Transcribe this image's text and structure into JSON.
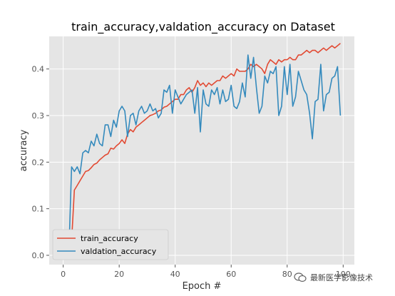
{
  "chart_data": {
    "type": "line",
    "title": "train_accuracy,valdation_accuracy on Dataset",
    "xlabel": "Epoch #",
    "ylabel": "accuracy",
    "xlim": [
      -5,
      104
    ],
    "ylim": [
      -0.02,
      0.47
    ],
    "xticks": [
      0,
      20,
      40,
      60,
      80,
      100
    ],
    "yticks": [
      0.0,
      0.1,
      0.2,
      0.3,
      0.4
    ],
    "xtick_labels": [
      "0",
      "20",
      "40",
      "60",
      "80",
      "100"
    ],
    "ytick_labels": [
      "0.0",
      "0.1",
      "0.2",
      "0.3",
      "0.4"
    ],
    "grid": true,
    "legend_position": "lower-left",
    "series": [
      {
        "name": "train_accuracy",
        "color": "#E24A33",
        "x": [
          3,
          4,
          5,
          6,
          7,
          8,
          9,
          10,
          11,
          12,
          13,
          14,
          15,
          16,
          17,
          18,
          19,
          20,
          21,
          22,
          23,
          24,
          25,
          26,
          27,
          28,
          29,
          30,
          31,
          32,
          33,
          34,
          35,
          36,
          37,
          38,
          39,
          40,
          41,
          42,
          43,
          44,
          45,
          46,
          47,
          48,
          49,
          50,
          51,
          52,
          53,
          54,
          55,
          56,
          57,
          58,
          59,
          60,
          61,
          62,
          63,
          64,
          65,
          66,
          67,
          68,
          69,
          70,
          71,
          72,
          73,
          74,
          75,
          76,
          77,
          78,
          79,
          80,
          81,
          82,
          83,
          84,
          85,
          86,
          87,
          88,
          89,
          90,
          91,
          92,
          93,
          94,
          95,
          96,
          97,
          98,
          99
        ],
        "y": [
          0.03,
          0.14,
          0.15,
          0.16,
          0.17,
          0.18,
          0.182,
          0.188,
          0.195,
          0.198,
          0.205,
          0.21,
          0.215,
          0.218,
          0.23,
          0.228,
          0.235,
          0.24,
          0.248,
          0.24,
          0.26,
          0.27,
          0.265,
          0.275,
          0.28,
          0.285,
          0.29,
          0.295,
          0.3,
          0.302,
          0.305,
          0.31,
          0.312,
          0.318,
          0.32,
          0.325,
          0.33,
          0.335,
          0.335,
          0.345,
          0.345,
          0.355,
          0.36,
          0.35,
          0.36,
          0.375,
          0.365,
          0.37,
          0.362,
          0.37,
          0.365,
          0.37,
          0.375,
          0.375,
          0.385,
          0.38,
          0.385,
          0.39,
          0.385,
          0.4,
          0.395,
          0.395,
          0.395,
          0.4,
          0.41,
          0.405,
          0.41,
          0.405,
          0.4,
          0.39,
          0.41,
          0.42,
          0.415,
          0.41,
          0.42,
          0.415,
          0.42,
          0.42,
          0.425,
          0.42,
          0.42,
          0.43,
          0.43,
          0.435,
          0.44,
          0.435,
          0.44,
          0.44,
          0.435,
          0.44,
          0.445,
          0.44,
          0.445,
          0.45,
          0.445,
          0.45,
          0.455
        ]
      },
      {
        "name": "valdation_accuracy",
        "color": "#348ABD",
        "x": [
          2,
          3,
          4,
          5,
          6,
          7,
          8,
          9,
          10,
          11,
          12,
          13,
          14,
          15,
          16,
          17,
          18,
          19,
          20,
          21,
          22,
          23,
          24,
          25,
          26,
          27,
          28,
          29,
          30,
          31,
          32,
          33,
          34,
          35,
          36,
          37,
          38,
          39,
          40,
          41,
          42,
          43,
          44,
          45,
          46,
          47,
          48,
          49,
          50,
          51,
          52,
          53,
          54,
          55,
          56,
          57,
          58,
          59,
          60,
          61,
          62,
          63,
          64,
          65,
          66,
          67,
          68,
          69,
          70,
          71,
          72,
          73,
          74,
          75,
          76,
          77,
          78,
          79,
          80,
          81,
          82,
          83,
          84,
          85,
          86,
          87,
          88,
          89,
          90,
          91,
          92,
          93,
          94,
          95,
          96,
          97,
          98,
          99
        ],
        "y": [
          0.0,
          0.19,
          0.18,
          0.19,
          0.175,
          0.22,
          0.225,
          0.22,
          0.245,
          0.235,
          0.26,
          0.24,
          0.235,
          0.28,
          0.28,
          0.255,
          0.29,
          0.275,
          0.31,
          0.32,
          0.31,
          0.255,
          0.3,
          0.305,
          0.28,
          0.31,
          0.32,
          0.305,
          0.31,
          0.325,
          0.31,
          0.315,
          0.295,
          0.305,
          0.355,
          0.35,
          0.365,
          0.305,
          0.355,
          0.34,
          0.325,
          0.335,
          0.345,
          0.35,
          0.355,
          0.305,
          0.36,
          0.265,
          0.355,
          0.325,
          0.32,
          0.355,
          0.345,
          0.36,
          0.325,
          0.355,
          0.33,
          0.335,
          0.365,
          0.32,
          0.315,
          0.33,
          0.37,
          0.34,
          0.43,
          0.38,
          0.425,
          0.36,
          0.305,
          0.32,
          0.385,
          0.37,
          0.395,
          0.39,
          0.405,
          0.3,
          0.32,
          0.405,
          0.345,
          0.41,
          0.32,
          0.34,
          0.395,
          0.375,
          0.355,
          0.345,
          0.305,
          0.25,
          0.33,
          0.335,
          0.41,
          0.31,
          0.345,
          0.35,
          0.38,
          0.385,
          0.405,
          0.3
        ]
      }
    ]
  },
  "watermark": {
    "text": "最新医学影像技术"
  }
}
